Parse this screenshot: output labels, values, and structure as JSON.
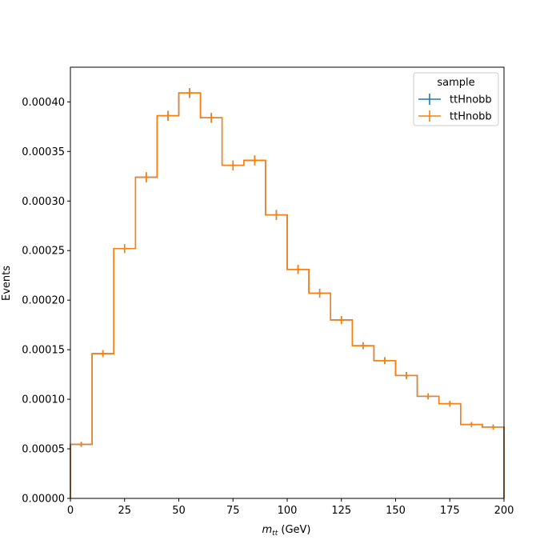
{
  "chart_data": {
    "type": "histogram",
    "xlabel_main": "m",
    "xlabel_sub": "tt",
    "xlabel_unit": " (GeV)",
    "ylabel": "Events",
    "xlim": [
      0,
      200
    ],
    "ylim": [
      0,
      0.000435
    ],
    "x_ticks": [
      0,
      25,
      50,
      75,
      100,
      125,
      150,
      175,
      200
    ],
    "x_tick_labels": [
      "0",
      "25",
      "50",
      "75",
      "100",
      "125",
      "150",
      "175",
      "200"
    ],
    "y_ticks": [
      0,
      5e-05,
      0.0001,
      0.00015,
      0.0002,
      0.00025,
      0.0003,
      0.00035,
      0.0004
    ],
    "y_tick_labels": [
      "0.00000",
      "0.00005",
      "0.00010",
      "0.00015",
      "0.00020",
      "0.00025",
      "0.00030",
      "0.00035",
      "0.00040"
    ],
    "bin_edges": [
      0,
      10,
      20,
      30,
      40,
      50,
      60,
      70,
      80,
      90,
      100,
      110,
      120,
      130,
      140,
      150,
      160,
      170,
      180,
      190,
      200
    ],
    "series": [
      {
        "name": "ttHnobb",
        "color": "#1f77b4",
        "values": [
          5.45e-05,
          0.000146,
          0.000252,
          0.000324,
          0.000386,
          0.000409,
          0.000384,
          0.000336,
          0.000341,
          0.000286,
          0.000231,
          0.000207,
          0.00018,
          0.000154,
          0.000139,
          0.000124,
          0.000103,
          9.55e-05,
          7.45e-05,
          7.2e-05
        ],
        "errors": [
          2.5e-06,
          3.5e-06,
          4.5e-06,
          5e-06,
          5e-06,
          5e-06,
          5e-06,
          5e-06,
          5e-06,
          5e-06,
          4.5e-06,
          4.5e-06,
          4e-06,
          3.5e-06,
          3.5e-06,
          3.5e-06,
          3e-06,
          3e-06,
          2.5e-06,
          2.5e-06
        ]
      },
      {
        "name": "ttHnobb",
        "color": "#ff7f0e",
        "values": [
          5.45e-05,
          0.000146,
          0.000252,
          0.000324,
          0.000386,
          0.000409,
          0.000384,
          0.000336,
          0.000341,
          0.000286,
          0.000231,
          0.000207,
          0.00018,
          0.000154,
          0.000139,
          0.000124,
          0.000103,
          9.55e-05,
          7.45e-05,
          7.2e-05
        ],
        "errors": [
          2.5e-06,
          3.5e-06,
          4.5e-06,
          5e-06,
          5e-06,
          5e-06,
          5e-06,
          5e-06,
          5e-06,
          5e-06,
          4.5e-06,
          4.5e-06,
          4e-06,
          3.5e-06,
          3.5e-06,
          3.5e-06,
          3e-06,
          3e-06,
          2.5e-06,
          2.5e-06
        ]
      }
    ],
    "legend": {
      "title": "sample",
      "placement": "top-right",
      "entries": [
        "ttHnobb",
        "ttHnobb"
      ]
    },
    "grid": false
  }
}
